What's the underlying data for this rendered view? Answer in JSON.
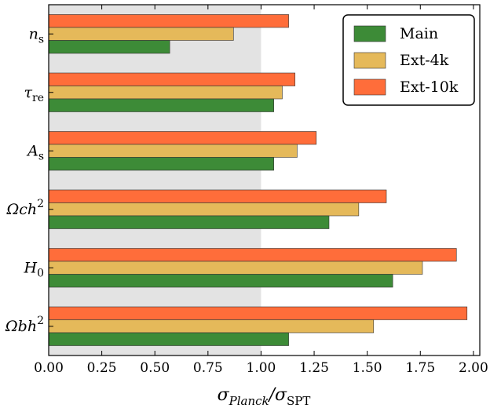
{
  "chart_data": {
    "type": "bar",
    "orientation": "horizontal",
    "categories": [
      "n_s",
      "τ_re",
      "A_s",
      "Ω_c h^2",
      "H_0",
      "Ω_b h^2"
    ],
    "category_labels": [
      {
        "base": "n",
        "sub": "s",
        "sup": ""
      },
      {
        "base": "τ",
        "sub": "re",
        "sup": ""
      },
      {
        "base": "A",
        "sub": "s",
        "sup": ""
      },
      {
        "base": "Ωch",
        "sub": "",
        "sup": "2"
      },
      {
        "base": "H",
        "sub": "0",
        "sup": ""
      },
      {
        "base": "Ωbh",
        "sub": "",
        "sup": "2"
      }
    ],
    "series": [
      {
        "name": "Main",
        "color": "#3d8b37",
        "values": [
          0.57,
          1.06,
          1.06,
          1.32,
          1.62,
          1.13
        ]
      },
      {
        "name": "Ext-4k",
        "color": "#e5b95a",
        "values": [
          0.87,
          1.1,
          1.17,
          1.46,
          1.76,
          1.53
        ]
      },
      {
        "name": "Ext-10k",
        "color": "#ff6d3a",
        "values": [
          1.13,
          1.16,
          1.26,
          1.59,
          1.92,
          1.97
        ]
      }
    ],
    "xlim": [
      0.0,
      2.03
    ],
    "xticks": [
      "0.00",
      "0.25",
      "0.50",
      "0.75",
      "1.00",
      "1.25",
      "1.50",
      "1.75",
      "2.00"
    ],
    "xlabel": "σPlanck/σSPT",
    "shaded_region": [
      0.0,
      1.0
    ],
    "legend_position": "top-right",
    "grid": false
  }
}
